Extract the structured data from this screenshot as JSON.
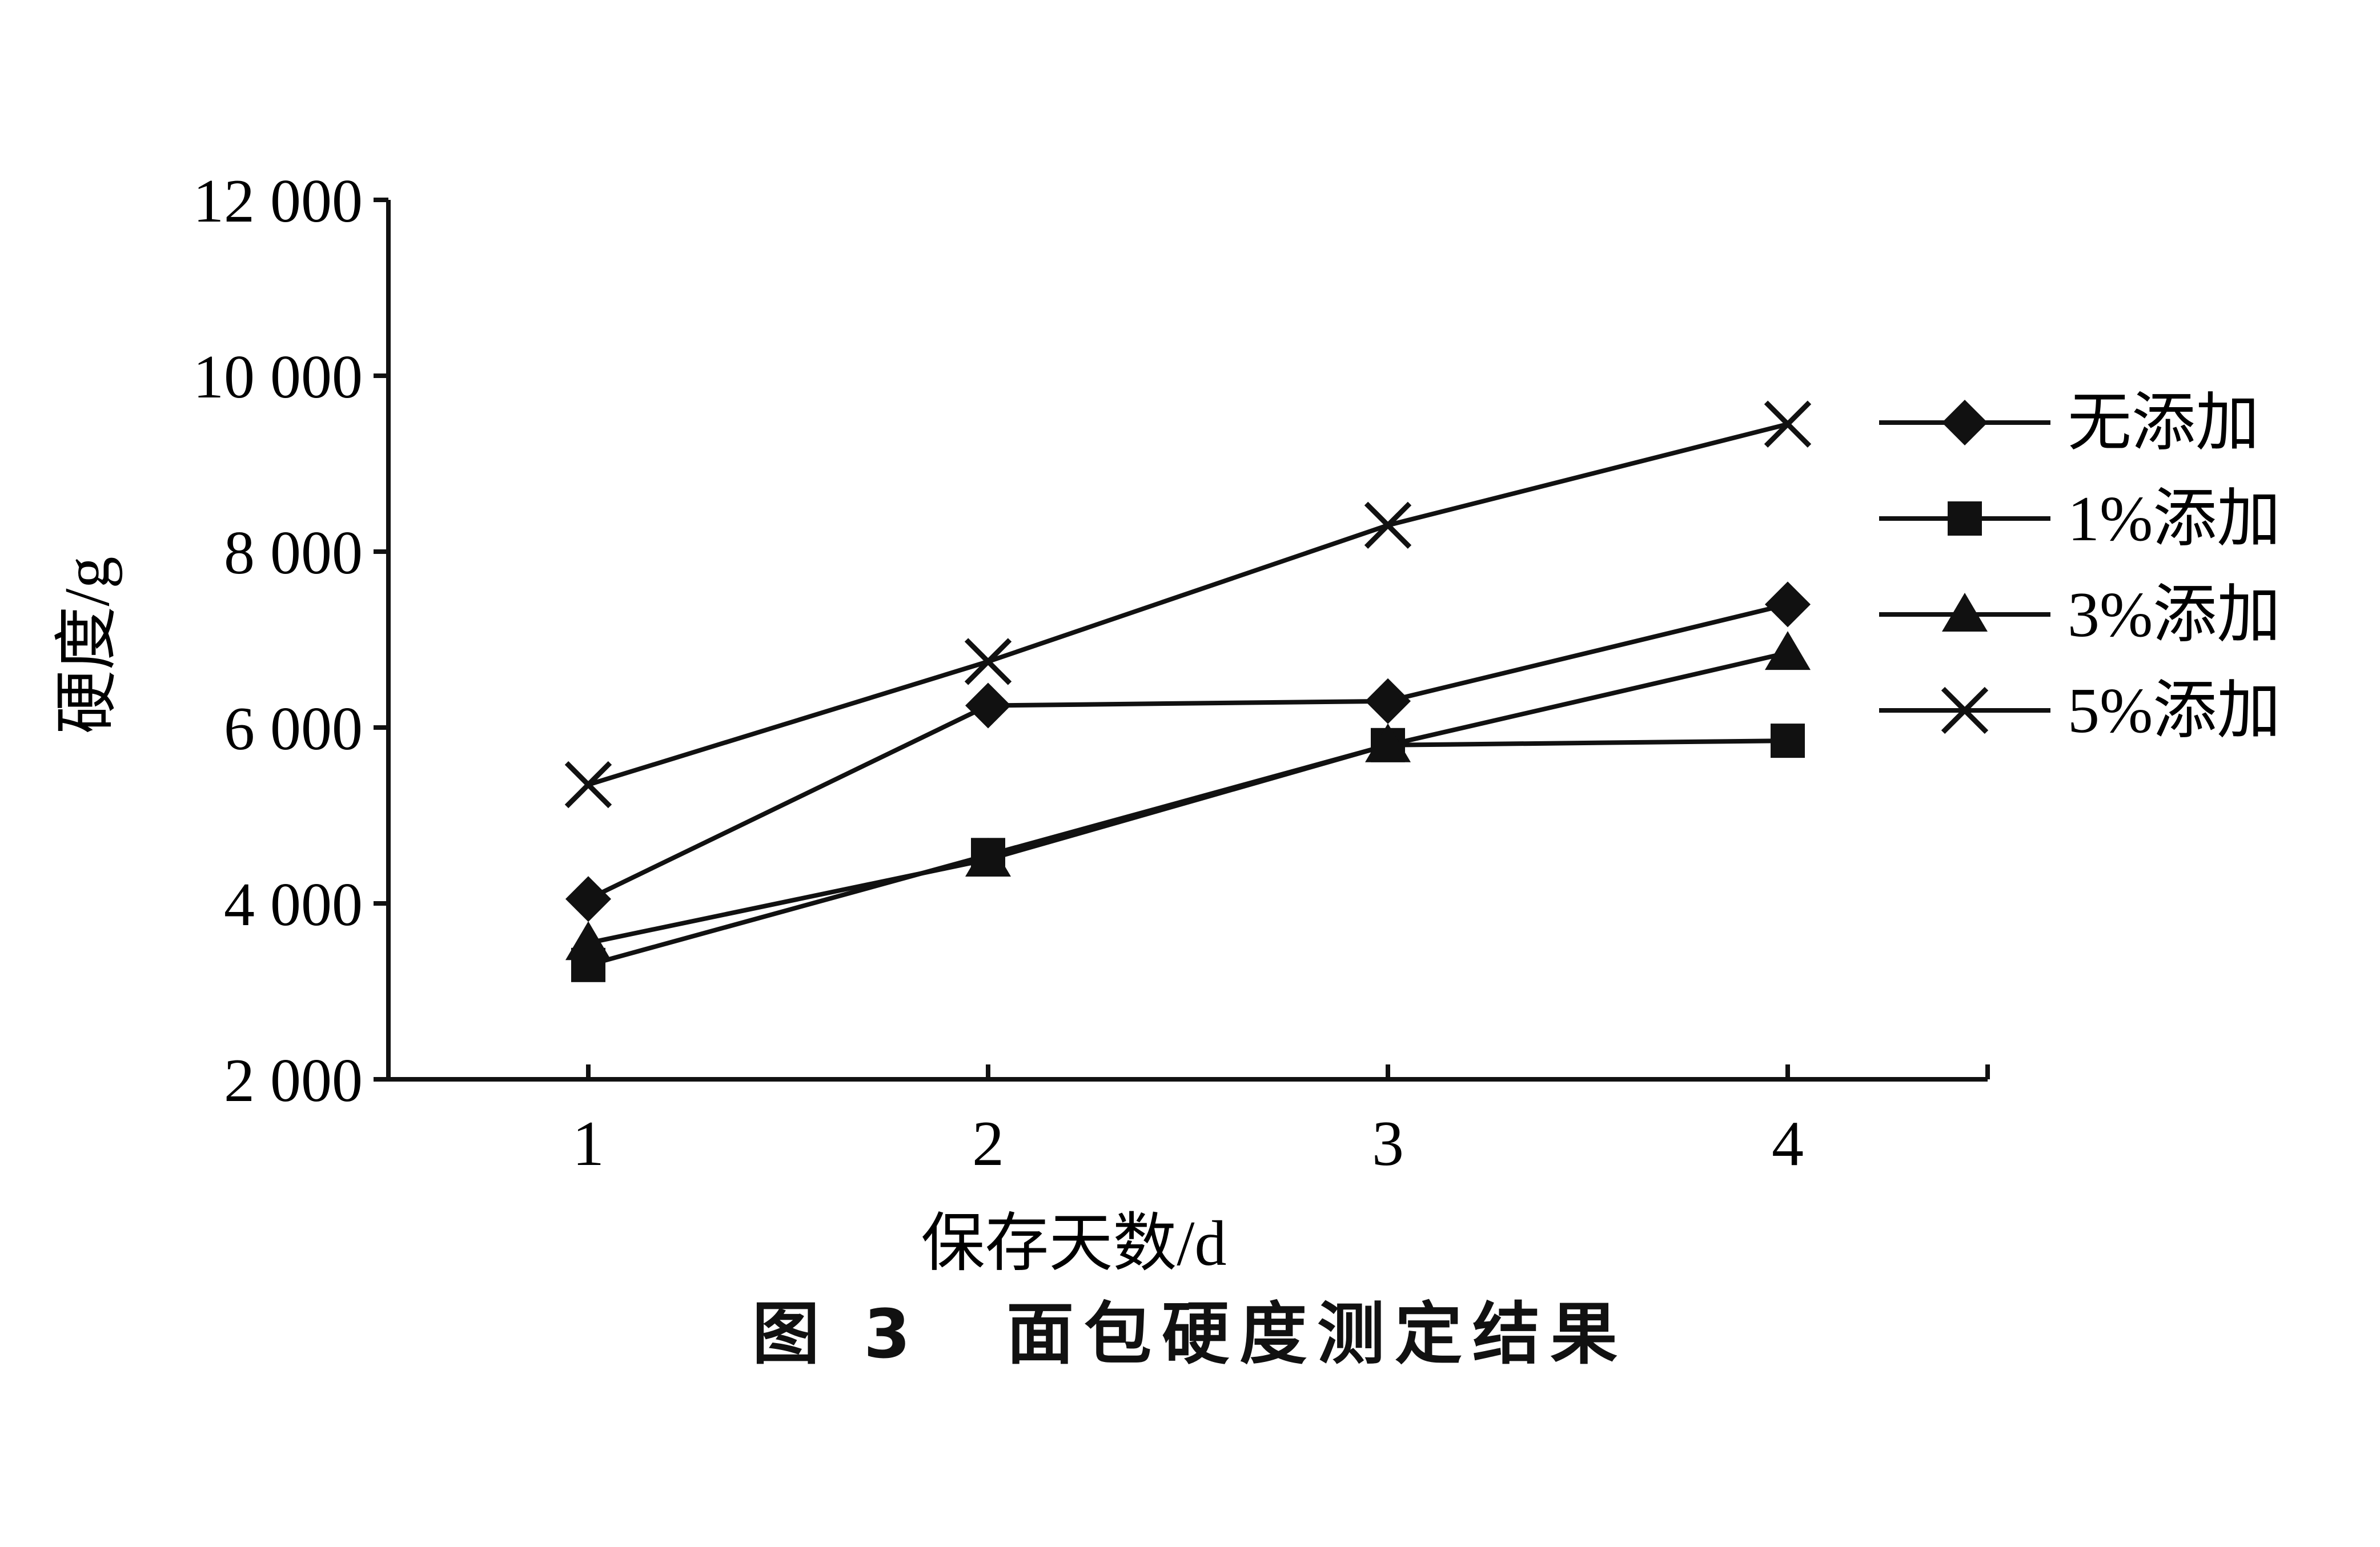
{
  "caption": {
    "label": "图 3",
    "title": "面包硬度测定结果"
  },
  "chart_data": {
    "type": "line",
    "title": "",
    "xlabel": "保存天数/d",
    "ylabel": "硬度/g",
    "x": [
      1,
      2,
      3,
      4
    ],
    "x_tick_labels": [
      "1",
      "2",
      "3",
      "4"
    ],
    "xlim": [
      0.5,
      4.5
    ],
    "ylim": [
      2000,
      12000
    ],
    "y_ticks": [
      2000,
      4000,
      6000,
      8000,
      10000,
      12000
    ],
    "y_tick_labels": [
      "2 000",
      "4 000",
      "6 000",
      "8 000",
      "10 000",
      "12 000"
    ],
    "grid": false,
    "legend_position": "right",
    "series": [
      {
        "name": "无添加",
        "marker": "diamond",
        "values": [
          4050,
          6250,
          6300,
          7400
        ]
      },
      {
        "name": "1%添加",
        "marker": "square",
        "values": [
          3300,
          4550,
          5800,
          5850
        ]
      },
      {
        "name": "3%添加",
        "marker": "triangle",
        "values": [
          3550,
          4500,
          5800,
          6850
        ]
      },
      {
        "name": "5%添加",
        "marker": "x",
        "values": [
          5350,
          6750,
          8300,
          9450
        ]
      }
    ]
  }
}
